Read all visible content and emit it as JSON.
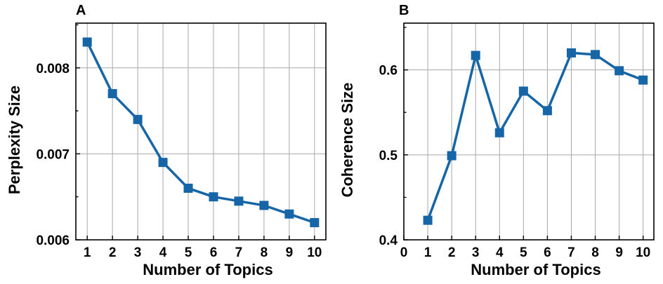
{
  "colors": {
    "series": "#1565a7",
    "grid": "#a8a8a8",
    "axis": "#000000"
  },
  "chart_data": [
    {
      "panel": "A",
      "type": "line",
      "marker": "square",
      "xlabel": "Number of  Topics",
      "ylabel": "Perplexity Size",
      "x": [
        1,
        2,
        3,
        4,
        5,
        6,
        7,
        8,
        9,
        10
      ],
      "x_ticks": [
        "1",
        "2",
        "3",
        "4",
        "5",
        "6",
        "7",
        "8",
        "9",
        "10"
      ],
      "xlim": [
        0.55,
        10.45
      ],
      "y_ticks": [
        "0.006",
        "0.007",
        "0.008"
      ],
      "y_tick_values": [
        0.006,
        0.007,
        0.008
      ],
      "ylim": [
        0.006,
        0.00852
      ],
      "grid": true,
      "series": [
        {
          "values": [
            0.0083,
            0.0077,
            0.0074,
            0.0069,
            0.0066,
            0.0065,
            0.00645,
            0.0064,
            0.0063,
            0.0062
          ]
        }
      ]
    },
    {
      "panel": "B",
      "type": "line",
      "marker": "square",
      "xlabel": "Number of  Topics",
      "ylabel": "Coherence Size",
      "x": [
        1,
        2,
        3,
        4,
        5,
        6,
        7,
        8,
        9,
        10
      ],
      "x_ticks": [
        "0",
        "1",
        "2",
        "3",
        "4",
        "5",
        "6",
        "7",
        "8",
        "9",
        "10"
      ],
      "xlim": [
        0,
        10.45
      ],
      "y_ticks": [
        "0.4",
        "0.5",
        "0.6"
      ],
      "y_tick_values": [
        0.4,
        0.5,
        0.6
      ],
      "ylim": [
        0.4,
        0.655
      ],
      "grid": true,
      "series": [
        {
          "values": [
            0.423,
            0.499,
            0.617,
            0.526,
            0.575,
            0.552,
            0.62,
            0.618,
            0.599,
            0.588
          ]
        }
      ]
    }
  ]
}
